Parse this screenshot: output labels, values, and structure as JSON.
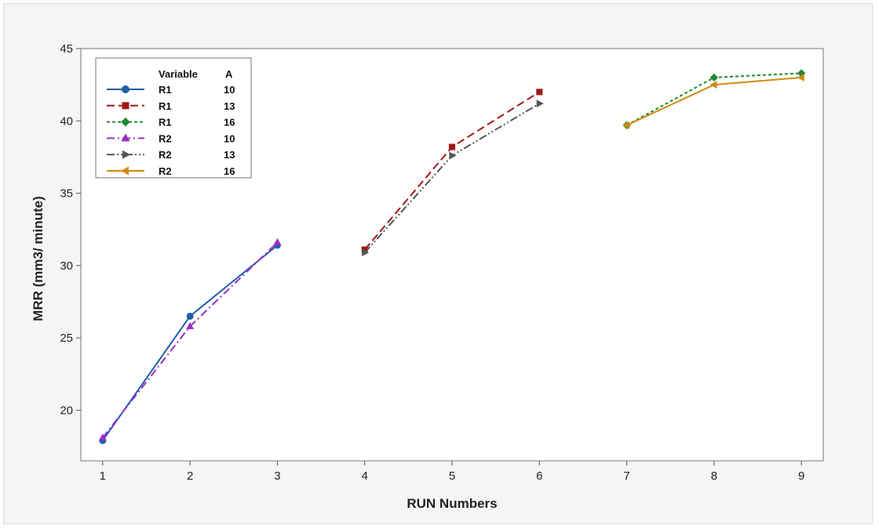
{
  "chart_data": {
    "type": "line",
    "title": "",
    "xlabel": "RUN Numbers",
    "ylabel": "MRR (mm3/ minute)",
    "xlim": [
      0.75,
      9.25
    ],
    "ylim": [
      16.5,
      45
    ],
    "x_ticks": [
      "1",
      "2",
      "3",
      "4",
      "5",
      "6",
      "7",
      "8",
      "9"
    ],
    "y_ticks": [
      "20",
      "25",
      "30",
      "35",
      "40",
      "45"
    ],
    "grid": false,
    "legend": {
      "placement": "top-left",
      "header_variable": "Variable",
      "header_a": "A"
    },
    "series": [
      {
        "name": "R1",
        "a": "10",
        "color": "#1f5fa8",
        "dash": "solid",
        "marker": "circle",
        "x": [
          1,
          2,
          3
        ],
        "y": [
          17.9,
          26.5,
          31.4
        ]
      },
      {
        "name": "R1",
        "a": "13",
        "color": "#a01818",
        "dash": "dashed",
        "marker": "square",
        "x": [
          4,
          5,
          6
        ],
        "y": [
          31.1,
          38.2,
          42.0
        ]
      },
      {
        "name": "R1",
        "a": "16",
        "color": "#1f8a2e",
        "dash": "dotted",
        "marker": "diamond",
        "x": [
          7,
          8,
          9
        ],
        "y": [
          39.7,
          43.0,
          43.3
        ]
      },
      {
        "name": "R2",
        "a": "10",
        "color": "#9b2fc8",
        "dash": "dashdot",
        "marker": "triangle-up",
        "x": [
          1,
          2,
          3
        ],
        "y": [
          18.1,
          25.8,
          31.6
        ]
      },
      {
        "name": "R2",
        "a": "13",
        "color": "#555555",
        "dash": "dashdotdot",
        "marker": "triangle-right",
        "x": [
          4,
          5,
          6
        ],
        "y": [
          30.9,
          37.6,
          41.2
        ]
      },
      {
        "name": "R2",
        "a": "16",
        "color": "#d08a12",
        "dash": "solid",
        "marker": "triangle-left",
        "x": [
          7,
          8,
          9
        ],
        "y": [
          39.7,
          42.5,
          43.0
        ]
      }
    ]
  }
}
